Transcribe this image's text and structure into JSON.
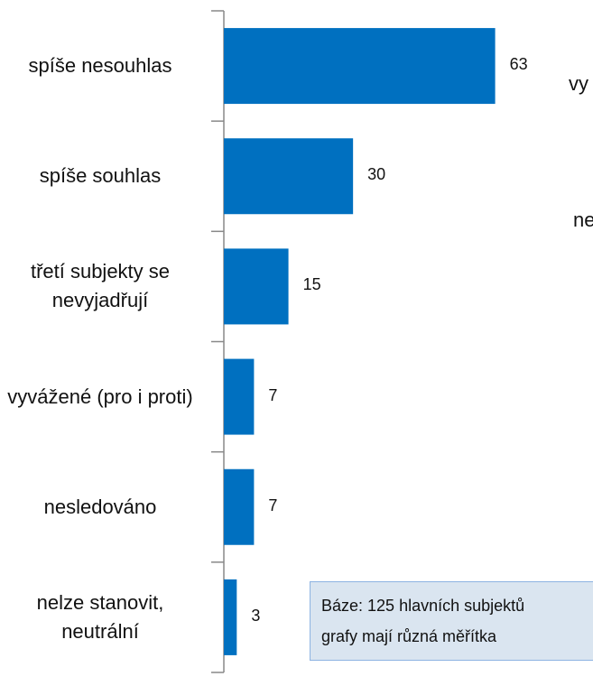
{
  "chart_data": {
    "type": "bar",
    "orientation": "horizontal",
    "categories": [
      "spíše nesouhlas",
      "spíše souhlas",
      "třetí subjekty se nevyjadřují",
      "vyvážené (pro i proti)",
      "nesledováno",
      "nelze stanovit, neutrální"
    ],
    "values": [
      63,
      30,
      15,
      7,
      7,
      3
    ],
    "color": "#0070c0",
    "xlim": [
      0,
      70
    ],
    "note": [
      "Báze: 125 hlavních subjektů",
      "grafy mají různá měřítka"
    ],
    "clipped_text": [
      "vy",
      "ne"
    ]
  }
}
